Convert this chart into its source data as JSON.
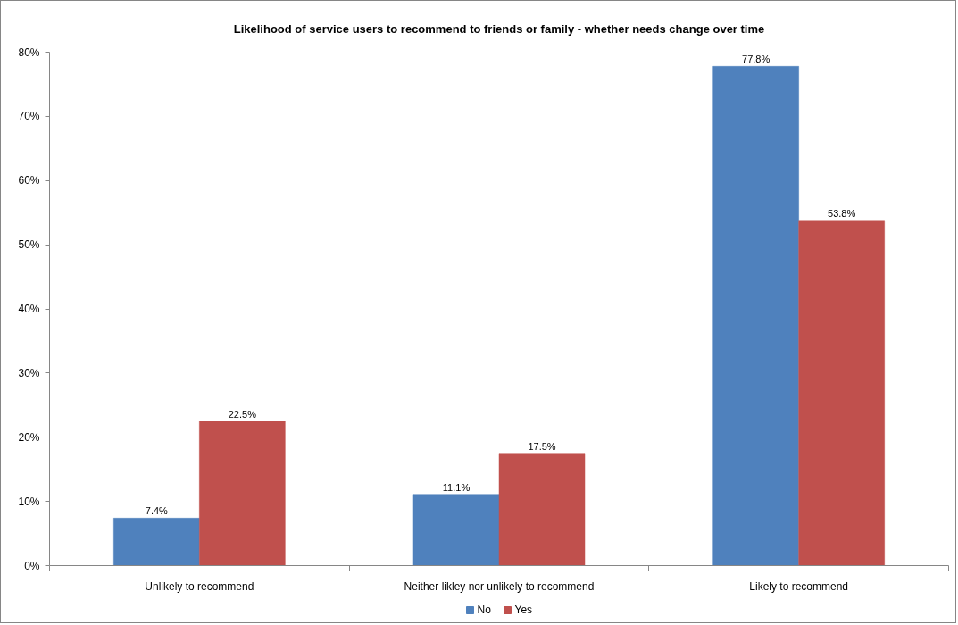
{
  "chart_data": {
    "type": "bar",
    "title": "Likelihood of service users to recommend to friends or family - whether needs change over time",
    "categories": [
      "Unlikely to recommend",
      "Neither likley nor unlikely to recommend",
      "Likely to recommend"
    ],
    "series": [
      {
        "name": "No",
        "color": "#4f81bd",
        "values": [
          7.4,
          11.1,
          77.8
        ],
        "value_labels": [
          "7.4%",
          "11.1%",
          "77.8%"
        ]
      },
      {
        "name": "Yes",
        "color": "#c0504d",
        "values": [
          22.5,
          17.5,
          53.8
        ],
        "value_labels": [
          "22.5%",
          "17.5%",
          "53.8%"
        ]
      }
    ],
    "ylim": [
      0,
      80
    ],
    "yticks": [
      {
        "value": 0,
        "label": "0%"
      },
      {
        "value": 10,
        "label": "10%"
      },
      {
        "value": 20,
        "label": "20%"
      },
      {
        "value": 30,
        "label": "30%"
      },
      {
        "value": 40,
        "label": "40%"
      },
      {
        "value": 50,
        "label": "50%"
      },
      {
        "value": 60,
        "label": "60%"
      },
      {
        "value": 70,
        "label": "70%"
      },
      {
        "value": 80,
        "label": "80%"
      }
    ],
    "grid": false,
    "legend": "bottom"
  }
}
